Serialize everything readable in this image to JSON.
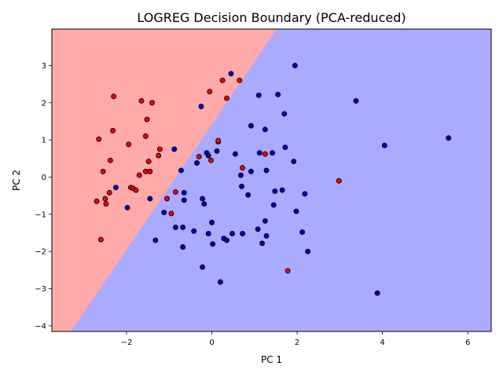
{
  "chart_data": {
    "type": "scatter",
    "title": "LOGREG Decision Boundary (PCA-reduced)",
    "xlabel": "PC 1",
    "ylabel": "PC 2",
    "xlim": [
      -3.75,
      6.55
    ],
    "ylim": [
      -4.15,
      3.98
    ],
    "xticks": [
      -2,
      0,
      2,
      4,
      6
    ],
    "yticks": [
      -4,
      -3,
      -2,
      -1,
      0,
      1,
      2,
      3
    ],
    "grid": false,
    "regions": [
      {
        "class": "red",
        "color": "#ffaaaa"
      },
      {
        "class": "blue",
        "color": "#aaaaff"
      }
    ],
    "boundary": {
      "points": [
        [
          -3.3,
          -4.15
        ],
        [
          1.52,
          3.98
        ]
      ]
    },
    "series": [
      {
        "color": "#ff0000",
        "points": [
          [
            -2.7,
            -0.65
          ],
          [
            -2.65,
            1.02
          ],
          [
            -2.6,
            -1.68
          ],
          [
            -2.55,
            0.15
          ],
          [
            -2.5,
            -0.58
          ],
          [
            -2.48,
            -0.72
          ],
          [
            -2.4,
            -0.42
          ],
          [
            -2.38,
            0.45
          ],
          [
            -2.32,
            1.25
          ],
          [
            -2.3,
            2.17
          ],
          [
            -1.95,
            0.88
          ],
          [
            -1.9,
            -0.28
          ],
          [
            -1.85,
            -0.3
          ],
          [
            -1.78,
            -0.35
          ],
          [
            -1.7,
            0.05
          ],
          [
            -1.65,
            2.05
          ],
          [
            -1.55,
            0.15
          ],
          [
            -1.55,
            1.1
          ],
          [
            -1.52,
            1.55
          ],
          [
            -1.48,
            0.42
          ],
          [
            -1.45,
            0.15
          ],
          [
            -1.4,
            2.0
          ],
          [
            -1.25,
            0.58
          ],
          [
            -1.22,
            0.75
          ],
          [
            -1.05,
            -0.58
          ],
          [
            -0.95,
            -0.98
          ],
          [
            -0.85,
            -0.4
          ],
          [
            -0.3,
            0.55
          ],
          [
            -0.05,
            2.3
          ],
          [
            -0.02,
            0.45
          ],
          [
            0.15,
            0.95
          ],
          [
            0.15,
            0.98
          ],
          [
            0.25,
            2.6
          ],
          [
            0.35,
            2.12
          ],
          [
            0.65,
            2.6
          ],
          [
            0.72,
            0.25
          ],
          [
            1.25,
            0.62
          ],
          [
            1.78,
            -2.52
          ],
          [
            2.98,
            -0.1
          ]
        ]
      },
      {
        "color": "#0000cc",
        "points": [
          [
            -2.25,
            -0.28
          ],
          [
            -1.98,
            -0.82
          ],
          [
            -1.45,
            -0.58
          ],
          [
            -1.32,
            -1.7
          ],
          [
            -1.12,
            -0.95
          ],
          [
            -0.88,
            0.75
          ],
          [
            -0.85,
            -1.35
          ],
          [
            -0.72,
            0.18
          ],
          [
            -0.68,
            -1.35
          ],
          [
            -0.68,
            -1.88
          ],
          [
            -0.65,
            -0.42
          ],
          [
            -0.65,
            -0.62
          ],
          [
            -0.42,
            -1.45
          ],
          [
            -0.35,
            0.38
          ],
          [
            -0.25,
            1.9
          ],
          [
            -0.22,
            -0.58
          ],
          [
            -0.22,
            -2.42
          ],
          [
            -0.18,
            -0.72
          ],
          [
            -0.12,
            0.65
          ],
          [
            -0.08,
            0.58
          ],
          [
            -0.08,
            -1.52
          ],
          [
            0.0,
            -1.22
          ],
          [
            0.02,
            -1.8
          ],
          [
            0.12,
            0.7
          ],
          [
            0.2,
            -2.82
          ],
          [
            0.28,
            -1.65
          ],
          [
            0.35,
            -1.7
          ],
          [
            0.45,
            2.78
          ],
          [
            0.48,
            -1.52
          ],
          [
            0.55,
            0.62
          ],
          [
            0.68,
            0.05
          ],
          [
            0.7,
            -0.25
          ],
          [
            0.72,
            -1.52
          ],
          [
            0.85,
            -0.48
          ],
          [
            0.92,
            1.38
          ],
          [
            0.92,
            0.15
          ],
          [
            1.08,
            -1.4
          ],
          [
            1.1,
            2.2
          ],
          [
            1.12,
            0.65
          ],
          [
            1.18,
            -1.78
          ],
          [
            1.25,
            1.28
          ],
          [
            1.25,
            -1.18
          ],
          [
            1.28,
            0.18
          ],
          [
            1.28,
            -1.58
          ],
          [
            1.42,
            0.65
          ],
          [
            1.45,
            -0.75
          ],
          [
            1.48,
            -0.38
          ],
          [
            1.55,
            2.22
          ],
          [
            1.65,
            -0.35
          ],
          [
            1.7,
            1.7
          ],
          [
            1.72,
            0.8
          ],
          [
            1.92,
            0.42
          ],
          [
            1.95,
            3.0
          ],
          [
            1.98,
            -0.92
          ],
          [
            2.12,
            -1.48
          ],
          [
            2.18,
            -0.45
          ],
          [
            2.25,
            -2.0
          ],
          [
            3.38,
            2.05
          ],
          [
            3.88,
            -3.12
          ],
          [
            4.05,
            0.85
          ],
          [
            5.55,
            1.05
          ]
        ]
      }
    ]
  }
}
